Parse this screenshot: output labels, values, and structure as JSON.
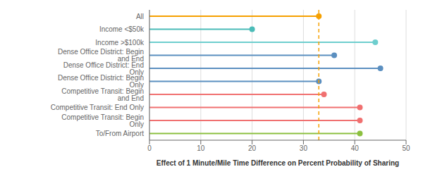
{
  "chart_data": {
    "type": "lollipop",
    "orientation": "horizontal",
    "categories": [
      "All",
      "Income <$50k",
      "Income >$100k",
      "Dense Office District: Begin and End",
      "Dense Office District: End Only",
      "Dense Office District: Begin Only",
      "Competitive Transit: Begin and End",
      "Competitive Transit: End Only",
      "Competitive Transit: Begin Only",
      "To/From Airport"
    ],
    "values": [
      33,
      20,
      44,
      36,
      45,
      33,
      34,
      41,
      41,
      41
    ],
    "colors": [
      "#F5A000",
      "#4BBCB8",
      "#6ECECE",
      "#5B8FC0",
      "#5B8FC0",
      "#5B8FC0",
      "#F07070",
      "#F07070",
      "#F07070",
      "#8CC040"
    ],
    "reference_line": {
      "x": 33,
      "color": "#F5A000",
      "line_style": "dashed"
    },
    "xlim": [
      0,
      50
    ],
    "xticks": [
      0,
      10,
      20,
      30,
      40,
      50
    ],
    "xlabel": "Effect of 1 Minute/Mile Time Difference on Percent Probability of Sharing",
    "grid": "x"
  }
}
